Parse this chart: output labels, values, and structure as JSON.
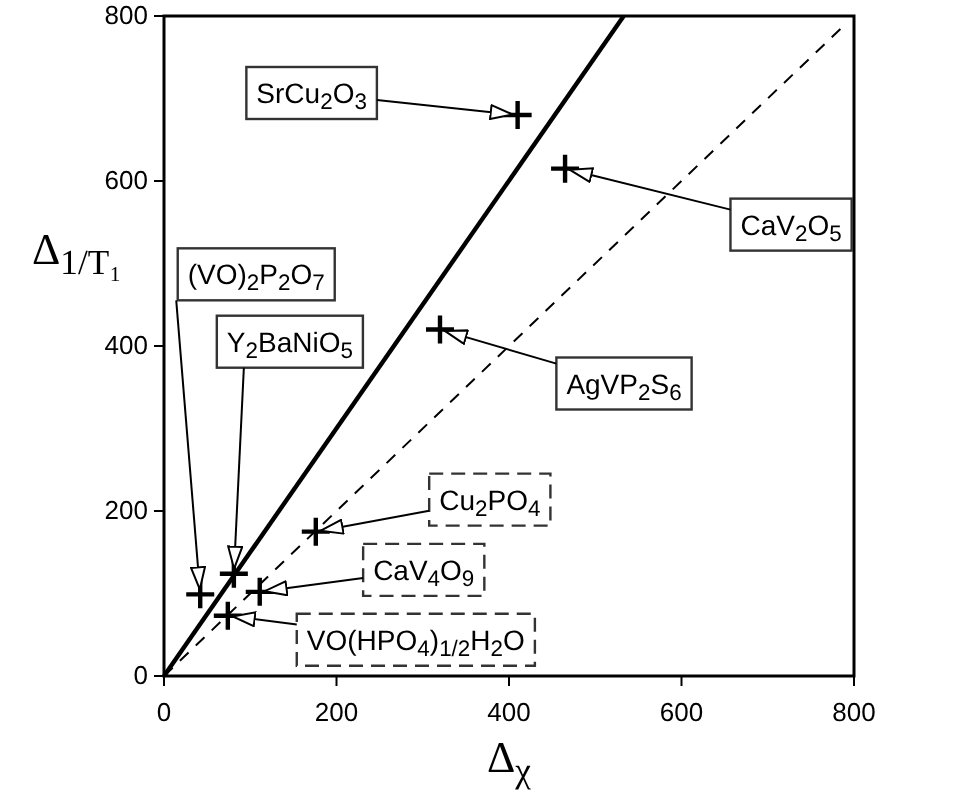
{
  "chart_data": {
    "type": "scatter",
    "xlabel": "Δ$_{χ}$",
    "ylabel": "Δ$_{1/T₁}$",
    "xlim": [
      0,
      800
    ],
    "ylim": [
      0,
      800
    ],
    "xticks": [
      0,
      200,
      400,
      600,
      800
    ],
    "yticks": [
      0,
      200,
      400,
      600,
      800
    ],
    "grid": false,
    "series": [
      {
        "marker": "cross",
        "color": "#000000",
        "x": [
          410,
          465,
          320,
          176,
          111,
          74,
          81,
          42
        ],
        "values": [
          680,
          615,
          420,
          175,
          102,
          73,
          124,
          99
        ]
      },
      {
        "type": "line",
        "color": "#000000",
        "line_style": "solid",
        "marker": "none",
        "x": [
          0,
          533
        ],
        "values": [
          0,
          800
        ]
      },
      {
        "type": "line",
        "color": "#000000",
        "line_style": "dashed",
        "marker": "none",
        "x": [
          0,
          785
        ],
        "values": [
          0,
          785
        ]
      }
    ],
    "annotations": [
      {
        "text": "SrCu$_{2}$O$_{3}$",
        "x": 410,
        "y": 680
      },
      {
        "text": "CaV$_{2}$O$_{5}$",
        "x": 465,
        "y": 615
      },
      {
        "text": "AgVP$_{2}$S$_{6}$",
        "x": 320,
        "y": 420
      },
      {
        "text": "Cu$_{2}$PO$_{4}$",
        "x": 176,
        "y": 175
      },
      {
        "text": "CaV$_{4}$O$_{9}$",
        "x": 111,
        "y": 102
      },
      {
        "text": "VO(HPO$_{4}$)$_{1/2}$H$_{2}$O",
        "x": 74,
        "y": 73
      },
      {
        "text": "Y$_{2}$BaNiO$_{5}$",
        "x": 81,
        "y": 124
      },
      {
        "text": "(VO)$_{2}$P$_{2}$O$_{7}$",
        "x": 42,
        "y": 99
      }
    ]
  }
}
